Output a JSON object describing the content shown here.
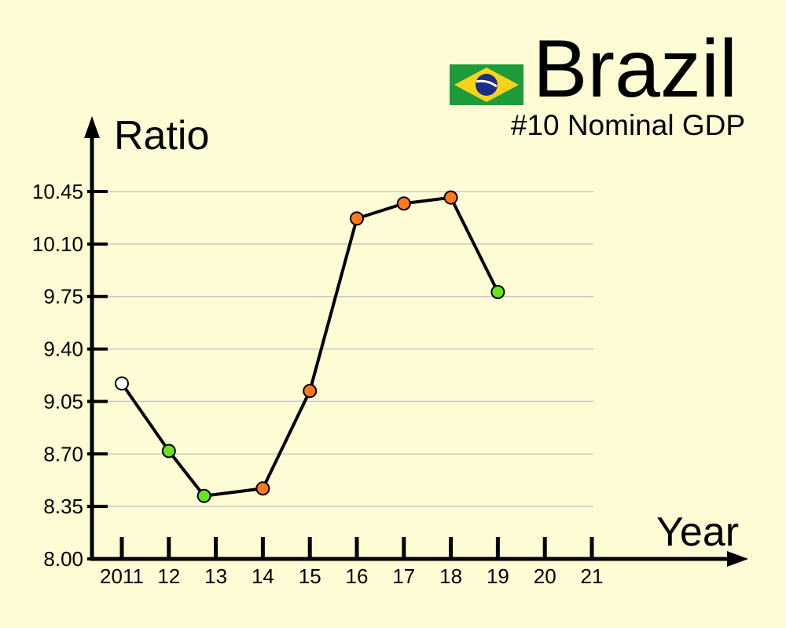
{
  "header": {
    "title": "Brazil",
    "subtitle": "#10 Nominal GDP",
    "flag_icon": "brazil-flag-icon"
  },
  "colors": {
    "background": "#fefcd5",
    "gridline": "#c8c8c8",
    "axis": "#000000",
    "line": "#000000",
    "point_white": "#ffffff",
    "point_green": "#66e41e",
    "point_orange": "#ff7a1a"
  },
  "chart_data": {
    "type": "line",
    "title": "Brazil",
    "subtitle": "#10 Nominal GDP",
    "xlabel": "Year",
    "ylabel": "Ratio",
    "x_ticks": [
      "2011",
      "12",
      "13",
      "14",
      "15",
      "16",
      "17",
      "18",
      "19",
      "20",
      "21"
    ],
    "y_ticks": [
      "8.00",
      "8.35",
      "8.70",
      "9.05",
      "9.40",
      "9.75",
      "10.10",
      "10.45"
    ],
    "ylim": [
      8.0,
      10.45
    ],
    "xlim": [
      2011,
      2021
    ],
    "grid": true,
    "series": [
      {
        "points": [
          {
            "x": 2011.0,
            "y": 9.17,
            "color": "white"
          },
          {
            "x": 2012.0,
            "y": 8.72,
            "color": "green"
          },
          {
            "x": 2012.75,
            "y": 8.42,
            "color": "green"
          },
          {
            "x": 2014.0,
            "y": 8.47,
            "color": "orange"
          },
          {
            "x": 2015.0,
            "y": 9.12,
            "color": "orange"
          },
          {
            "x": 2016.0,
            "y": 10.27,
            "color": "orange"
          },
          {
            "x": 2017.0,
            "y": 10.37,
            "color": "orange"
          },
          {
            "x": 2018.0,
            "y": 10.41,
            "color": "orange"
          },
          {
            "x": 2019.0,
            "y": 9.78,
            "color": "green"
          }
        ]
      }
    ]
  }
}
